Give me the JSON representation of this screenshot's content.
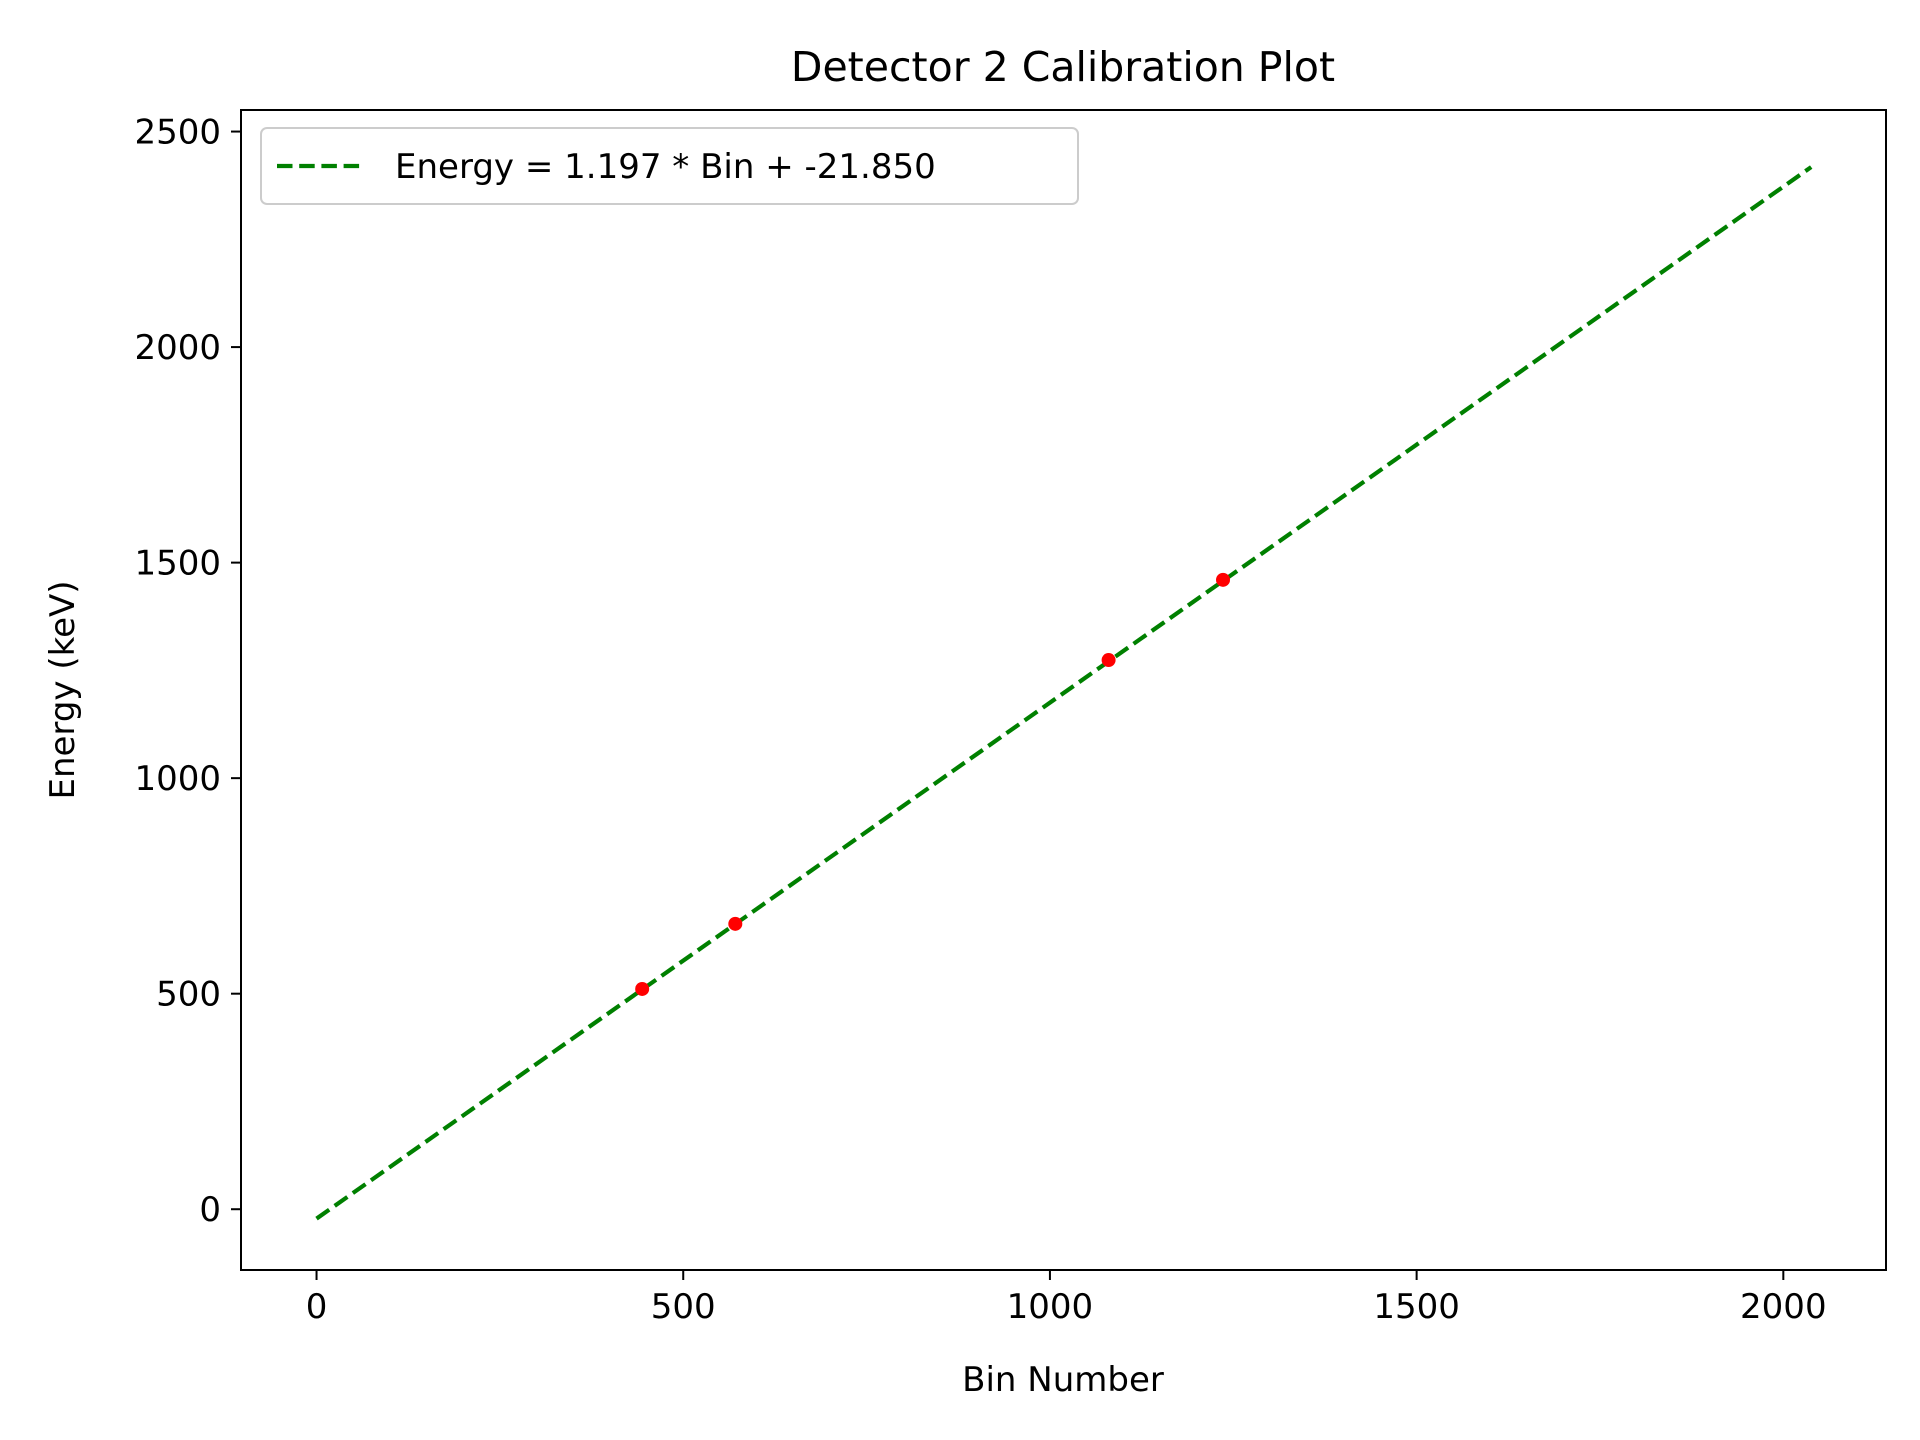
{
  "chart_data": {
    "type": "scatter",
    "title": "Detector 2 Calibration Plot",
    "xlabel": "Bin Number",
    "ylabel": "Energy (keV)",
    "xlim": [
      -103,
      2140
    ],
    "ylim": [
      -141,
      2550
    ],
    "xticks": [
      0,
      500,
      1000,
      1500,
      2000
    ],
    "yticks": [
      0,
      500,
      1000,
      1500,
      2000,
      2500
    ],
    "grid": false,
    "legend_position": "top-left",
    "fit_line": {
      "name": "Energy = 1.197 * Bin + -21.850",
      "slope": 1.197,
      "intercept": -21.85,
      "x_range": [
        0,
        2038
      ],
      "style": "dashed",
      "color": "#008000"
    },
    "points": {
      "color": "#ff0000",
      "x": [
        444,
        571,
        1080,
        1236
      ],
      "y": [
        511,
        662,
        1274,
        1460
      ]
    }
  }
}
